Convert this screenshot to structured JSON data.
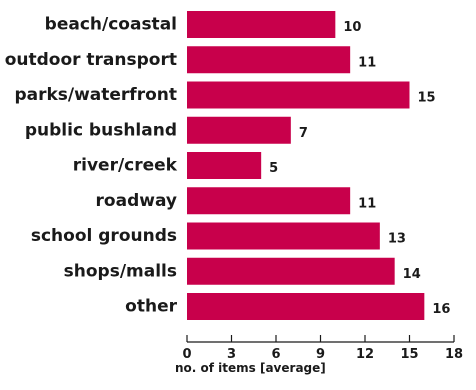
{
  "colors": {
    "bar": "#c8004b",
    "text": "#1a1a1a",
    "axis": "#1a1a1a"
  },
  "chart_data": {
    "type": "bar",
    "orientation": "horizontal",
    "categories": [
      "beach/coastal",
      "outdoor transport",
      "parks/waterfront",
      "public bushland",
      "river/creek",
      "roadway",
      "school grounds",
      "shops/malls",
      "other"
    ],
    "values": [
      10,
      11,
      15,
      7,
      5,
      11,
      13,
      14,
      16
    ],
    "value_labels": [
      "10",
      "11",
      "15",
      "7",
      "5",
      "11",
      "13",
      "14",
      "16"
    ],
    "xlabel": "no. of items [average]",
    "ylabel": "",
    "title": "",
    "xlim": [
      0,
      18
    ],
    "xticks": [
      0,
      3,
      6,
      9,
      12,
      15,
      18
    ],
    "xtick_labels": [
      "0",
      "3",
      "6",
      "9",
      "12",
      "15",
      "18"
    ],
    "grid": false,
    "legend": false
  }
}
